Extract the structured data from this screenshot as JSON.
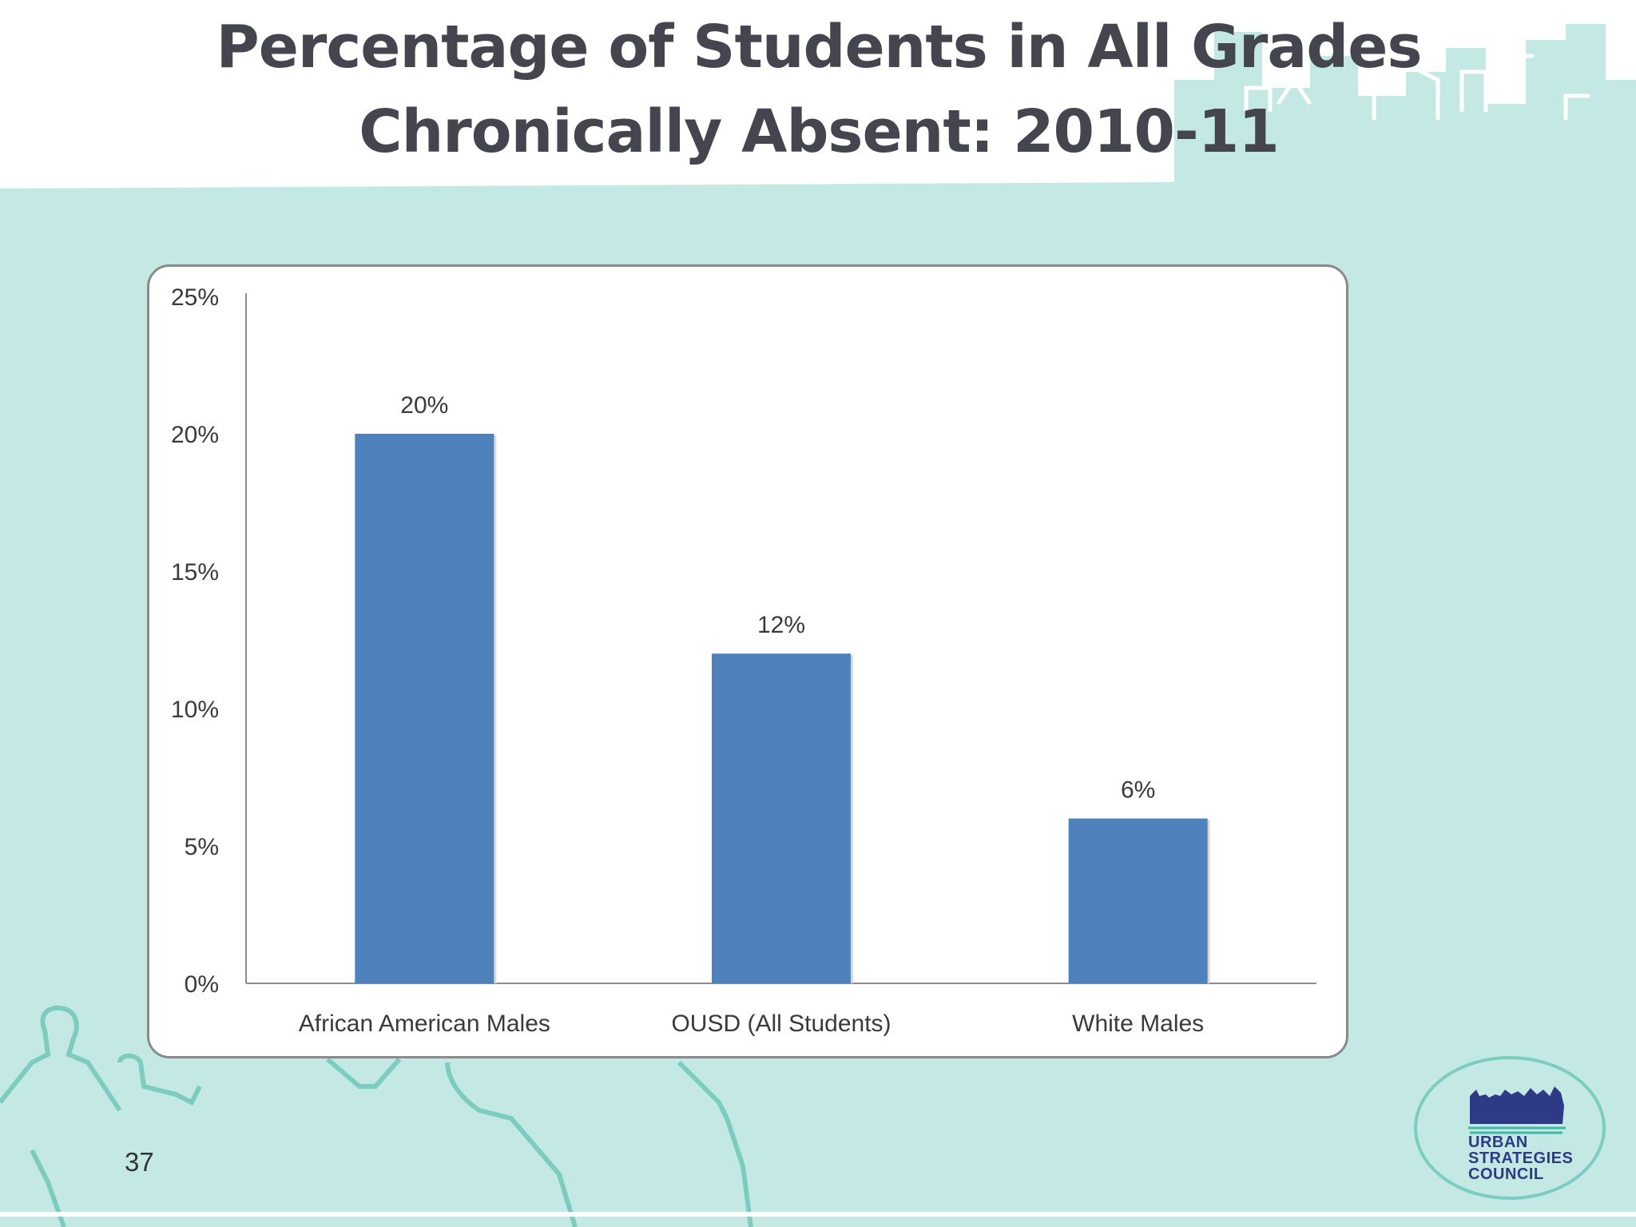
{
  "slide": {
    "title_line1": "Percentage of Students in All Grades",
    "title_line2": "Chronically Absent: 2010-11",
    "page_number": "37"
  },
  "logo": {
    "line1": "URBAN",
    "line2": "STRATEGIES",
    "line3": "COUNCIL"
  },
  "colors": {
    "bar": "#4f81bd",
    "background_teal": "#c4e9e4",
    "silhouette_stroke": "#7cccc2",
    "title": "#45454f",
    "logo": "#2d3a86"
  },
  "chart_data": {
    "type": "bar",
    "categories": [
      "African American Males",
      "OUSD (All Students)",
      "White Males"
    ],
    "values": [
      20,
      12,
      6
    ],
    "data_labels": [
      "20%",
      "12%",
      "6%"
    ],
    "yticks": [
      "0%",
      "5%",
      "10%",
      "15%",
      "20%",
      "25%"
    ],
    "ytick_values": [
      0,
      5,
      10,
      15,
      20,
      25
    ],
    "ylim": [
      0,
      25
    ],
    "grid": false,
    "legend": "none"
  }
}
